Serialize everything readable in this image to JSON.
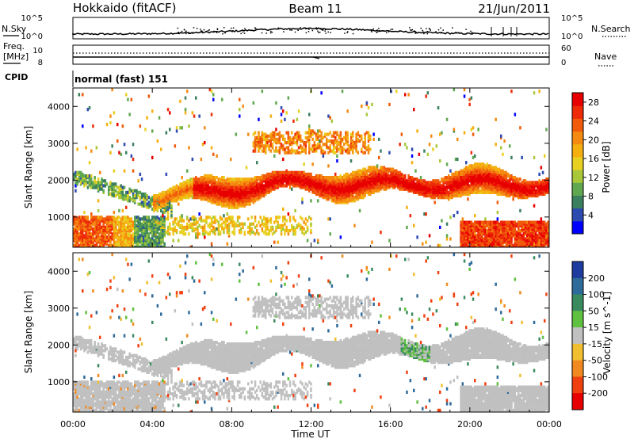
{
  "header": {
    "station": "Hokkaido (fitACF)",
    "beam": "Beam 11",
    "date": "21/Jun/2011"
  },
  "top_panels": {
    "nsky_label": "N.Sky",
    "freq_label_line1": "Freq.",
    "freq_label_line2": "[MHz]",
    "cpid_label": "CPID",
    "nsearch_label": "N.Search",
    "nave_label": "Nave",
    "noise_ticks": [
      "10^5",
      "10^0"
    ],
    "noise_ticks_right": [
      "10^5",
      "10^0"
    ],
    "freq_ticks": [
      "10",
      "8"
    ],
    "nave_ticks": [
      "60",
      "0"
    ],
    "cpid_text": "normal (fast) 151"
  },
  "chart_data": [
    {
      "type": "heatmap",
      "name": "Power",
      "ylabel": "Slant Range [km]",
      "y_ticks": [
        1000,
        2000,
        3000,
        4000
      ],
      "ylim": [
        180,
        4500
      ],
      "x_ticks": [
        "00:00",
        "04:00",
        "08:00",
        "12:00",
        "16:00",
        "20:00",
        "00:00"
      ],
      "xlim_hours": [
        0,
        24
      ],
      "colorbar": {
        "label": "Power [dB]",
        "ticks": [
          4,
          8,
          12,
          16,
          20,
          24,
          28
        ],
        "range": [
          0,
          30
        ],
        "colors": [
          "#0000ff",
          "#2c4ab0",
          "#3a7f5e",
          "#60a850",
          "#a8c83a",
          "#e8d020",
          "#f5b010",
          "#f58a10",
          "#f05a0a",
          "#ee2a08",
          "#e80000"
        ]
      },
      "features": [
        {
          "desc": "strong ionospheric band",
          "start_h": 4.0,
          "end_h": 23.0,
          "range_km_start": 1500,
          "range_km_end": 2300,
          "power_db": 28
        },
        {
          "desc": "near-range echoes",
          "start_h": 0.0,
          "end_h": 4.5,
          "range_km_start": 300,
          "range_km_end": 1000,
          "power_db": 18
        },
        {
          "desc": "high-range patches",
          "start_h": 9.0,
          "end_h": 15.0,
          "range_km_start": 2700,
          "range_km_end": 3300,
          "power_db": 24
        },
        {
          "desc": "late-night near-range echoes",
          "start_h": 19.5,
          "end_h": 24.0,
          "range_km_start": 250,
          "range_km_end": 900,
          "power_db": 28
        }
      ]
    },
    {
      "type": "heatmap",
      "name": "Velocity",
      "ylabel": "Slant Range [km]",
      "y_ticks": [
        1000,
        2000,
        3000,
        4000
      ],
      "ylim": [
        180,
        4500
      ],
      "x_ticks": [
        "00:00",
        "04:00",
        "08:00",
        "12:00",
        "16:00",
        "20:00",
        "00:00"
      ],
      "xlabel": "Time UT",
      "xlim_hours": [
        0,
        24
      ],
      "colorbar": {
        "label": "Velocity [m s^-1]",
        "ticks": [
          200,
          100,
          50,
          15,
          -15,
          -50,
          -100,
          -200
        ],
        "range": [
          -250,
          250
        ],
        "colors": [
          "#1e3ca0",
          "#2e6a9a",
          "#3a8a60",
          "#60c040",
          "#c0c0c0",
          "#f0c030",
          "#f08a20",
          "#f04010",
          "#e80000"
        ]
      },
      "features": [
        {
          "desc": "ground scatter band",
          "start_h": 4.0,
          "end_h": 23.0,
          "range_km_start": 1500,
          "range_km_end": 2500,
          "velocity_ms": 0
        },
        {
          "desc": "green positive velocity patch",
          "start_h": 16.5,
          "end_h": 18.0,
          "range_km_start": 1500,
          "range_km_end": 2400,
          "velocity_ms": 50
        }
      ]
    }
  ]
}
